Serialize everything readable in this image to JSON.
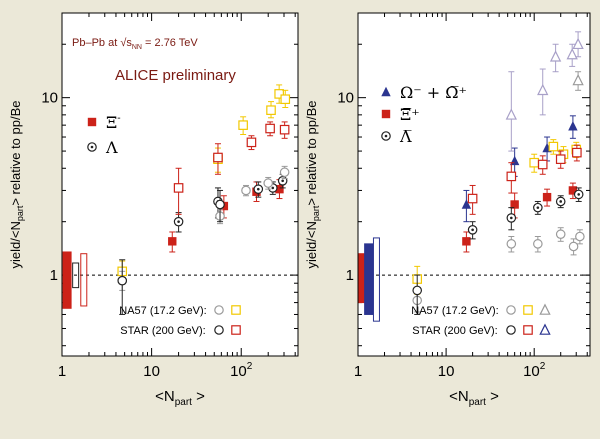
{
  "colors": {
    "background": "#ebe8d8",
    "plot_bg": "#ffffff",
    "xi": "#cc2219",
    "lambda": "#222222",
    "omega": "#2b3590",
    "na57_xi": "#f2c800",
    "na57_lambda": "#9a9a9a",
    "star_omega": "#a8a0c8",
    "text_maroon": "#7a1a12"
  },
  "chart_data": [
    {
      "type": "scatter",
      "panel": "left",
      "xscale": "log",
      "yscale": "log",
      "xlim": [
        1,
        430
      ],
      "ylim": [
        0.35,
        30
      ],
      "xlabel_main": "<N",
      "xlabel_sub": "part",
      "xlabel_end": " >",
      "ylabel": "yield/<N",
      "ylabel_sub": "part",
      "ylabel_end": "> relative to pp/Be",
      "xticks": [
        {
          "v": 1,
          "label": "1"
        },
        {
          "v": 10,
          "label": "10"
        },
        {
          "v": 100,
          "label": "10",
          "sup": "2"
        }
      ],
      "yticks": [
        {
          "v": 1,
          "label": "1"
        },
        {
          "v": 10,
          "label": "10"
        }
      ],
      "reference_line": 1,
      "title_line1": "Pb–Pb at √s",
      "title_sub": "NN",
      "title_line2": " = 2.76 TeV",
      "subtitle": "ALICE preliminary",
      "legend": [
        {
          "marker": "filled-square",
          "color_key": "xi",
          "label": "Ξ",
          "sup": "-"
        },
        {
          "marker": "open-circle-dot",
          "color_key": "lambda",
          "label": "Λ",
          "sup": ""
        }
      ],
      "reference_legend": [
        {
          "label": "NA57 (17.2 GeV):",
          "markers": [
            [
              "open-circle",
              "na57_lambda"
            ],
            [
              "open-square",
              "na57_xi"
            ]
          ]
        },
        {
          "label": "STAR (200 GeV):",
          "markers": [
            [
              "open-circle",
              "lambda"
            ],
            [
              "open-square",
              "xi"
            ]
          ]
        }
      ],
      "norm_boxes": [
        {
          "style": "filled",
          "color_key": "xi",
          "x": 1.14,
          "lo": 0.65,
          "hi": 1.35
        },
        {
          "style": "open",
          "color_key": "lambda",
          "x": 1.42,
          "lo": 0.85,
          "hi": 1.17
        },
        {
          "style": "open",
          "color_key": "xi",
          "x": 1.75,
          "lo": 0.67,
          "hi": 1.32
        }
      ],
      "series": [
        {
          "name": "ALICE Ξ-",
          "marker": "filled-square",
          "color_key": "xi",
          "points": [
            {
              "x": 17,
              "y": 1.55,
              "lo": 1.35,
              "hi": 1.75
            },
            {
              "x": 64,
              "y": 2.45,
              "lo": 2.1,
              "hi": 2.8
            },
            {
              "x": 148,
              "y": 2.95,
              "lo": 2.6,
              "hi": 3.35
            },
            {
              "x": 267,
              "y": 3.05,
              "lo": 2.7,
              "hi": 3.45
            }
          ]
        },
        {
          "name": "ALICE Λ",
          "marker": "open-circle-dot",
          "color_key": "lambda",
          "points": [
            {
              "x": 20,
              "y": 2.0,
              "lo": 1.75,
              "hi": 2.25
            },
            {
              "x": 55,
              "y": 2.6,
              "lo": 2.1,
              "hi": 3.1
            },
            {
              "x": 155,
              "y": 3.05,
              "lo": 2.75,
              "hi": 3.35
            },
            {
              "x": 225,
              "y": 3.1,
              "lo": 2.85,
              "hi": 3.35
            },
            {
              "x": 290,
              "y": 3.4,
              "lo": 3.1,
              "hi": 3.7
            }
          ]
        },
        {
          "name": "NA57 Ξ",
          "marker": "open-square",
          "color_key": "na57_xi",
          "points": [
            {
              "x": 4.7,
              "y": 1.05,
              "lo": 0.92,
              "hi": 1.2
            },
            {
              "x": 55,
              "y": 4.5,
              "lo": 3.8,
              "hi": 5.2
            },
            {
              "x": 105,
              "y": 7.0,
              "lo": 6.2,
              "hi": 7.8
            },
            {
              "x": 215,
              "y": 8.5,
              "lo": 7.7,
              "hi": 9.5
            },
            {
              "x": 265,
              "y": 10.5,
              "lo": 9.3,
              "hi": 11.8
            },
            {
              "x": 310,
              "y": 9.8,
              "lo": 8.8,
              "hi": 11
            }
          ]
        },
        {
          "name": "NA57 Λ",
          "marker": "open-circle",
          "color_key": "na57_lambda",
          "points": [
            {
              "x": 4.7,
              "y": 0.93,
              "lo": 0.82,
              "hi": 1.05
            },
            {
              "x": 58,
              "y": 2.15,
              "lo": 1.95,
              "hi": 2.35
            },
            {
              "x": 113,
              "y": 3.0,
              "lo": 2.8,
              "hi": 3.2
            },
            {
              "x": 200,
              "y": 3.3,
              "lo": 3.05,
              "hi": 3.55
            },
            {
              "x": 305,
              "y": 3.8,
              "lo": 3.5,
              "hi": 4.1
            }
          ]
        },
        {
          "name": "STAR Ξ",
          "marker": "open-square",
          "color_key": "xi",
          "points": [
            {
              "x": 20,
              "y": 3.1,
              "lo": 2.2,
              "hi": 4.0
            },
            {
              "x": 55,
              "y": 4.6,
              "lo": 3.7,
              "hi": 5.5
            },
            {
              "x": 130,
              "y": 5.6,
              "lo": 5.1,
              "hi": 6.1
            },
            {
              "x": 210,
              "y": 6.7,
              "lo": 6.1,
              "hi": 7.3
            },
            {
              "x": 305,
              "y": 6.6,
              "lo": 5.9,
              "hi": 7.3
            }
          ]
        },
        {
          "name": "STAR Λ",
          "marker": "open-circle",
          "color_key": "lambda",
          "points": [
            {
              "x": 4.7,
              "y": 0.93,
              "lo": 0.6,
              "hi": 1.22
            },
            {
              "x": 58,
              "y": 2.5,
              "lo": 2.0,
              "hi": 3.0
            }
          ]
        }
      ]
    },
    {
      "type": "scatter",
      "panel": "right",
      "xscale": "log",
      "yscale": "log",
      "xlim": [
        1,
        430
      ],
      "ylim": [
        0.35,
        30
      ],
      "xlabel_main": "<N",
      "xlabel_sub": "part",
      "xlabel_end": " >",
      "ylabel": "yield/<N",
      "ylabel_sub": "part",
      "ylabel_end": "> relative to pp/Be",
      "xticks": [
        {
          "v": 1,
          "label": "1"
        },
        {
          "v": 10,
          "label": "10"
        },
        {
          "v": 100,
          "label": "10",
          "sup": "2"
        }
      ],
      "yticks": [
        {
          "v": 1,
          "label": "1"
        },
        {
          "v": 10,
          "label": "10"
        }
      ],
      "reference_line": 1,
      "legend": [
        {
          "marker": "filled-triangle",
          "color_key": "omega",
          "label": "Ω⁻ + Ω̅⁺"
        },
        {
          "marker": "filled-square",
          "color_key": "xi",
          "label": "Ξ̅⁺"
        },
        {
          "marker": "open-circle-dot",
          "color_key": "lambda",
          "label": "Λ̅"
        }
      ],
      "reference_legend": [
        {
          "label": "NA57 (17.2 GeV):",
          "markers": [
            [
              "open-circle",
              "na57_lambda"
            ],
            [
              "open-square",
              "na57_xi"
            ],
            [
              "open-triangle",
              "na57_lambda"
            ]
          ]
        },
        {
          "label": "STAR (200 GeV):",
          "markers": [
            [
              "open-circle",
              "lambda"
            ],
            [
              "open-square",
              "xi"
            ],
            [
              "open-triangle",
              "omega"
            ]
          ]
        }
      ],
      "norm_boxes": [
        {
          "style": "filled",
          "color_key": "xi",
          "x": 1.14,
          "lo": 0.7,
          "hi": 1.32
        },
        {
          "style": "filled",
          "color_key": "omega",
          "x": 1.32,
          "lo": 0.6,
          "hi": 1.5
        },
        {
          "style": "open",
          "color_key": "omega",
          "x": 1.62,
          "lo": 0.55,
          "hi": 1.62
        }
      ],
      "series": [
        {
          "name": "ALICE Ω",
          "marker": "filled-triangle",
          "color_key": "omega",
          "points": [
            {
              "x": 17,
              "y": 2.5,
              "lo": 2.0,
              "hi": 3.0
            },
            {
              "x": 60,
              "y": 4.4,
              "lo": 3.6,
              "hi": 5.2
            },
            {
              "x": 140,
              "y": 5.2,
              "lo": 4.4,
              "hi": 6.0
            },
            {
              "x": 275,
              "y": 6.9,
              "lo": 5.9,
              "hi": 7.9
            }
          ]
        },
        {
          "name": "ALICE Ξ̅+",
          "marker": "filled-square",
          "color_key": "xi",
          "points": [
            {
              "x": 17,
              "y": 1.55,
              "lo": 1.35,
              "hi": 1.75
            },
            {
              "x": 60,
              "y": 2.5,
              "lo": 2.1,
              "hi": 2.9
            },
            {
              "x": 140,
              "y": 2.75,
              "lo": 2.45,
              "hi": 3.05
            },
            {
              "x": 275,
              "y": 3.0,
              "lo": 2.7,
              "hi": 3.3
            }
          ]
        },
        {
          "name": "ALICE Λ̅",
          "marker": "open-circle-dot",
          "color_key": "lambda",
          "points": [
            {
              "x": 20,
              "y": 1.8,
              "lo": 1.6,
              "hi": 2.0
            },
            {
              "x": 55,
              "y": 2.1,
              "lo": 1.8,
              "hi": 2.4
            },
            {
              "x": 110,
              "y": 2.4,
              "lo": 2.2,
              "hi": 2.6
            },
            {
              "x": 200,
              "y": 2.6,
              "lo": 2.4,
              "hi": 2.8
            },
            {
              "x": 320,
              "y": 2.85,
              "lo": 2.6,
              "hi": 3.1
            }
          ]
        },
        {
          "name": "STAR Ω",
          "marker": "open-triangle",
          "color_key": "star_omega",
          "points": [
            {
              "x": 55,
              "y": 8.0,
              "lo": 5.0,
              "hi": 14.0
            },
            {
              "x": 125,
              "y": 11.0,
              "lo": 8.0,
              "hi": 14.5
            },
            {
              "x": 175,
              "y": 17.0,
              "lo": 14.0,
              "hi": 20.0
            },
            {
              "x": 270,
              "y": 17.5,
              "lo": 15.0,
              "hi": 20.0
            },
            {
              "x": 315,
              "y": 20.0,
              "lo": 17.0,
              "hi": 23.5
            }
          ]
        },
        {
          "name": "NA57 Ω",
          "marker": "open-triangle",
          "color_key": "na57_lambda",
          "points": [
            {
              "x": 315,
              "y": 12.5,
              "lo": 11.0,
              "hi": 14.0
            }
          ]
        },
        {
          "name": "NA57 Ξ̅",
          "marker": "open-square",
          "color_key": "na57_xi",
          "points": [
            {
              "x": 4.7,
              "y": 0.95,
              "lo": 0.78,
              "hi": 1.12
            },
            {
              "x": 100,
              "y": 4.3,
              "lo": 3.8,
              "hi": 4.8
            },
            {
              "x": 165,
              "y": 5.3,
              "lo": 4.8,
              "hi": 5.8
            },
            {
              "x": 215,
              "y": 4.8,
              "lo": 4.3,
              "hi": 5.3
            },
            {
              "x": 300,
              "y": 5.1,
              "lo": 4.6,
              "hi": 5.6
            }
          ]
        },
        {
          "name": "STAR Ξ̅",
          "marker": "open-square",
          "color_key": "xi",
          "points": [
            {
              "x": 20,
              "y": 2.7,
              "lo": 2.2,
              "hi": 3.2
            },
            {
              "x": 55,
              "y": 3.6,
              "lo": 2.9,
              "hi": 4.3
            },
            {
              "x": 125,
              "y": 4.2,
              "lo": 3.7,
              "hi": 4.7
            },
            {
              "x": 200,
              "y": 4.5,
              "lo": 4.0,
              "hi": 5.0
            },
            {
              "x": 305,
              "y": 4.9,
              "lo": 4.4,
              "hi": 5.4
            }
          ]
        },
        {
          "name": "NA57 Λ̅",
          "marker": "open-circle",
          "color_key": "na57_lambda",
          "points": [
            {
              "x": 4.7,
              "y": 0.72,
              "lo": 0.62,
              "hi": 0.82
            },
            {
              "x": 55,
              "y": 1.5,
              "lo": 1.35,
              "hi": 1.65
            },
            {
              "x": 110,
              "y": 1.5,
              "lo": 1.35,
              "hi": 1.65
            },
            {
              "x": 200,
              "y": 1.7,
              "lo": 1.55,
              "hi": 1.85
            },
            {
              "x": 280,
              "y": 1.45,
              "lo": 1.3,
              "hi": 1.6
            },
            {
              "x": 330,
              "y": 1.65,
              "lo": 1.5,
              "hi": 1.8
            }
          ]
        },
        {
          "name": "STAR Λ̅",
          "marker": "open-circle",
          "color_key": "lambda",
          "points": [
            {
              "x": 4.7,
              "y": 0.82,
              "lo": 0.6,
              "hi": 1.0
            }
          ]
        }
      ]
    }
  ]
}
